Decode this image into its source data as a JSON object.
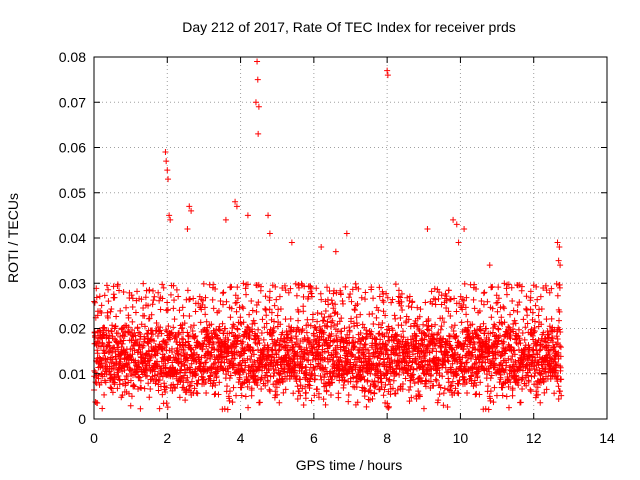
{
  "chart_data": {
    "type": "scatter",
    "title": "Day 212 of 2017, Rate Of TEC Index for receiver prds",
    "xlabel": "GPS time / hours",
    "ylabel": "ROTI / TECUs",
    "xlim": [
      0,
      14
    ],
    "ylim": [
      0,
      0.08
    ],
    "x_ticks": [
      0,
      2,
      4,
      6,
      8,
      10,
      12,
      14
    ],
    "y_ticks": [
      0,
      0.01,
      0.02,
      0.03,
      0.04,
      0.05,
      0.06,
      0.07,
      0.08
    ],
    "x_tick_labels": [
      "0",
      "2",
      "4",
      "6",
      "8",
      "10",
      "12",
      "14"
    ],
    "y_tick_labels": [
      "0",
      "0.01",
      "0.02",
      "0.03",
      "0.04",
      "0.05",
      "0.06",
      "0.07",
      "0.08"
    ],
    "grid": true,
    "marker": "+",
    "series": [
      {
        "name": "ROTI",
        "color": "#ff0000",
        "x_range": [
          0,
          12.75
        ],
        "baseline_band": [
          0.005,
          0.02
        ],
        "outliers": [
          {
            "x": 1.95,
            "y": 0.059
          },
          {
            "x": 1.97,
            "y": 0.057
          },
          {
            "x": 2.0,
            "y": 0.055
          },
          {
            "x": 2.02,
            "y": 0.053
          },
          {
            "x": 2.05,
            "y": 0.045
          },
          {
            "x": 2.08,
            "y": 0.044
          },
          {
            "x": 2.6,
            "y": 0.047
          },
          {
            "x": 2.65,
            "y": 0.046
          },
          {
            "x": 2.55,
            "y": 0.042
          },
          {
            "x": 3.85,
            "y": 0.048
          },
          {
            "x": 3.9,
            "y": 0.047
          },
          {
            "x": 3.6,
            "y": 0.044
          },
          {
            "x": 4.45,
            "y": 0.079
          },
          {
            "x": 4.47,
            "y": 0.075
          },
          {
            "x": 4.42,
            "y": 0.07
          },
          {
            "x": 4.5,
            "y": 0.069
          },
          {
            "x": 4.48,
            "y": 0.063
          },
          {
            "x": 4.75,
            "y": 0.045
          },
          {
            "x": 4.2,
            "y": 0.045
          },
          {
            "x": 4.8,
            "y": 0.041
          },
          {
            "x": 5.4,
            "y": 0.039
          },
          {
            "x": 6.2,
            "y": 0.038
          },
          {
            "x": 6.9,
            "y": 0.041
          },
          {
            "x": 6.6,
            "y": 0.037
          },
          {
            "x": 8.0,
            "y": 0.077
          },
          {
            "x": 8.02,
            "y": 0.076
          },
          {
            "x": 9.1,
            "y": 0.042
          },
          {
            "x": 9.8,
            "y": 0.044
          },
          {
            "x": 9.9,
            "y": 0.043
          },
          {
            "x": 9.95,
            "y": 0.039
          },
          {
            "x": 10.1,
            "y": 0.042
          },
          {
            "x": 10.8,
            "y": 0.034
          },
          {
            "x": 11.4,
            "y": 0.029
          },
          {
            "x": 12.65,
            "y": 0.039
          },
          {
            "x": 12.7,
            "y": 0.038
          },
          {
            "x": 12.68,
            "y": 0.035
          },
          {
            "x": 12.72,
            "y": 0.034
          }
        ]
      }
    ]
  }
}
